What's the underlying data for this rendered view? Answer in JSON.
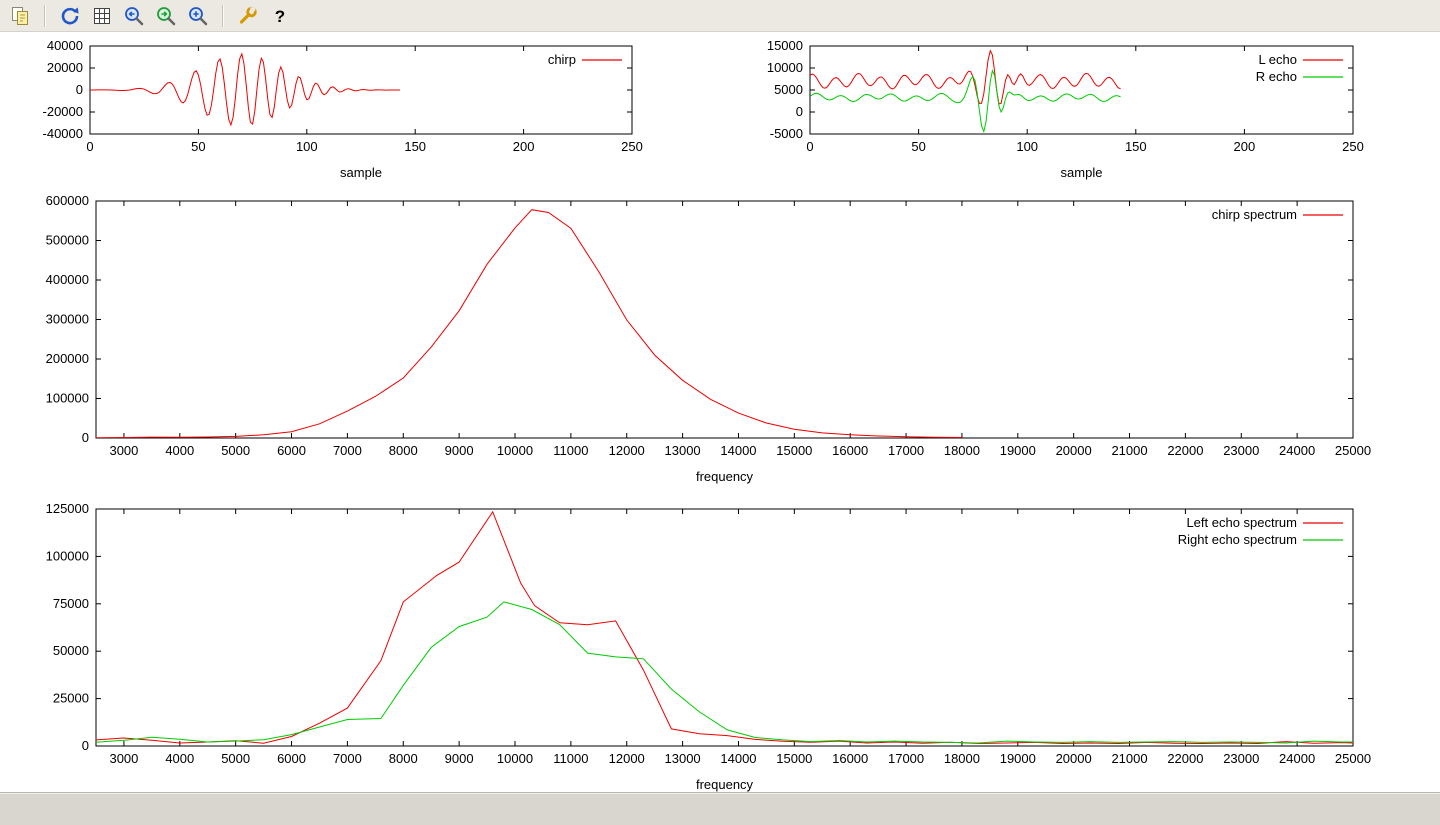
{
  "colors": {
    "toolbar_bg": "#ece8e2",
    "statusbar_bg": "#d9d5cf",
    "plot_bg": "#ffffff",
    "axis": "#000000",
    "series_red": "#ee0000",
    "series_green": "#00cc00"
  },
  "toolbar": {
    "icons": [
      "copy-icon",
      "separator",
      "refresh-icon",
      "grid-icon",
      "zoom-previous-icon",
      "zoom-next-icon",
      "autoscale-icon",
      "separator",
      "config-icon",
      "help-icon"
    ]
  },
  "statusbar": {
    "text": ""
  },
  "chart_data": [
    {
      "id": "chirp-signal",
      "type": "line",
      "title": "",
      "xlabel": "sample",
      "ylabel": "",
      "xlim": [
        0,
        250
      ],
      "ylim": [
        -40000,
        40000
      ],
      "xticks": [
        0,
        50,
        100,
        150,
        200,
        250
      ],
      "yticks": [
        -40000,
        -20000,
        0,
        20000,
        40000
      ],
      "grid": false,
      "legend_position": "top-right-inside",
      "series": [
        {
          "name": "chirp",
          "color": "#ee0000",
          "note": "oscillatory chirp burst, 144 samples; envelope peaks near ±33000 around sample 70, near zero before sample 25 and after sample 115, trace ends at sample 143",
          "synthesis": {
            "kind": "chirp",
            "n": 144,
            "amplitude": 33000,
            "center": 70,
            "width": 19,
            "f0": 0.048,
            "f1": 0.16
          }
        }
      ]
    },
    {
      "id": "echo-signals",
      "type": "line",
      "title": "",
      "xlabel": "sample",
      "ylabel": "",
      "xlim": [
        0,
        250
      ],
      "ylim": [
        -5000,
        15000
      ],
      "xticks": [
        0,
        50,
        100,
        150,
        200,
        250
      ],
      "yticks": [
        -5000,
        0,
        5000,
        10000,
        15000
      ],
      "grid": false,
      "legend_position": "top-right-inside",
      "series": [
        {
          "name": "L echo",
          "color": "#ee0000",
          "note": "wiggly line around baseline 7000 with large burst near samples 70-90 peaking about 14000, ends at sample 143",
          "synthesis": {
            "kind": "echo",
            "n": 144,
            "baseline": 7000,
            "w1": {
              "amp": 1300,
              "period": 10.5,
              "phase": 0.8
            },
            "w2": {
              "amp": 500,
              "period": 26,
              "phase": 2.2
            },
            "burst": {
              "amp": 6800,
              "center": 83,
              "width": 6.5,
              "f0": 0.105,
              "k": 0.004,
              "phase": 1.5708
            }
          }
        },
        {
          "name": "R echo",
          "color": "#00cc00",
          "note": "wiggly line around baseline 3300 with burst near samples 70-90 swinging up to about 9500 and down to about -4500, ends at sample 143",
          "synthesis": {
            "kind": "echo",
            "n": 144,
            "baseline": 3300,
            "w1": {
              "amp": 650,
              "period": 11.5,
              "phase": 0.0
            },
            "w2": {
              "amp": 300,
              "period": 30,
              "phase": 1.0
            },
            "burst": {
              "amp": 7300,
              "center": 80,
              "width": 6,
              "f0": 0.105,
              "k": 0.004,
              "phase": -1.5708
            }
          }
        }
      ]
    },
    {
      "id": "chirp-spectrum",
      "type": "line",
      "title": "",
      "xlabel": "frequency",
      "ylabel": "",
      "xlim": [
        2500,
        25000
      ],
      "ylim": [
        0,
        600000
      ],
      "xticks": [
        3000,
        4000,
        5000,
        6000,
        7000,
        8000,
        9000,
        10000,
        11000,
        12000,
        13000,
        14000,
        15000,
        16000,
        17000,
        18000,
        19000,
        20000,
        21000,
        22000,
        23000,
        24000,
        25000
      ],
      "yticks": [
        0,
        100000,
        200000,
        300000,
        400000,
        500000,
        600000
      ],
      "grid": false,
      "legend_position": "top-right-inside",
      "series": [
        {
          "name": "chirp spectrum",
          "color": "#ee0000",
          "points": [
            [
              2500,
              800
            ],
            [
              3000,
              1300
            ],
            [
              3500,
              2300
            ],
            [
              4000,
              1700
            ],
            [
              4500,
              2500
            ],
            [
              5000,
              4000
            ],
            [
              5500,
              8000
            ],
            [
              6000,
              16000
            ],
            [
              6500,
              36000
            ],
            [
              7000,
              68000
            ],
            [
              7500,
              105000
            ],
            [
              8000,
              152000
            ],
            [
              8500,
              230000
            ],
            [
              9000,
              322000
            ],
            [
              9500,
              440000
            ],
            [
              10000,
              532000
            ],
            [
              10300,
              578000
            ],
            [
              10600,
              571000
            ],
            [
              11000,
              531000
            ],
            [
              11500,
              421000
            ],
            [
              12000,
              299000
            ],
            [
              12500,
              210000
            ],
            [
              13000,
              146000
            ],
            [
              13500,
              98000
            ],
            [
              14000,
              63000
            ],
            [
              14500,
              38000
            ],
            [
              15000,
              22000
            ],
            [
              15500,
              13000
            ],
            [
              16000,
              8000
            ],
            [
              16500,
              5000
            ],
            [
              17000,
              3400
            ],
            [
              17500,
              2100
            ],
            [
              18000,
              1300
            ]
          ]
        }
      ]
    },
    {
      "id": "echo-spectra",
      "type": "line",
      "title": "",
      "xlabel": "frequency",
      "ylabel": "",
      "xlim": [
        2500,
        25000
      ],
      "ylim": [
        0,
        125000
      ],
      "xticks": [
        3000,
        4000,
        5000,
        6000,
        7000,
        8000,
        9000,
        10000,
        11000,
        12000,
        13000,
        14000,
        15000,
        16000,
        17000,
        18000,
        19000,
        20000,
        21000,
        22000,
        23000,
        24000,
        25000
      ],
      "yticks": [
        0,
        25000,
        50000,
        75000,
        100000,
        125000
      ],
      "grid": false,
      "legend_position": "top-right-inside",
      "series": [
        {
          "name": "Left echo spectrum",
          "color": "#ee0000",
          "points": [
            [
              2500,
              3200
            ],
            [
              3000,
              4200
            ],
            [
              3500,
              3000
            ],
            [
              4000,
              1600
            ],
            [
              4500,
              2100
            ],
            [
              5000,
              2800
            ],
            [
              5500,
              1500
            ],
            [
              6000,
              5000
            ],
            [
              6500,
              12000
            ],
            [
              7000,
              20000
            ],
            [
              7600,
              45000
            ],
            [
              8000,
              76000
            ],
            [
              8600,
              90000
            ],
            [
              9000,
              97000
            ],
            [
              9600,
              123500
            ],
            [
              10100,
              86000
            ],
            [
              10350,
              74000
            ],
            [
              10800,
              65000
            ],
            [
              11300,
              64000
            ],
            [
              11800,
              66000
            ],
            [
              12300,
              40000
            ],
            [
              12800,
              9000
            ],
            [
              13300,
              6500
            ],
            [
              13800,
              5500
            ],
            [
              14300,
              3500
            ],
            [
              14800,
              2500
            ],
            [
              15300,
              2000
            ],
            [
              15800,
              2600
            ],
            [
              16300,
              1600
            ],
            [
              16800,
              2100
            ],
            [
              17300,
              1500
            ],
            [
              17800,
              2000
            ],
            [
              18300,
              1300
            ],
            [
              18800,
              1600
            ],
            [
              19300,
              1900
            ],
            [
              19800,
              1300
            ],
            [
              20300,
              1600
            ],
            [
              20800,
              1300
            ],
            [
              21300,
              1900
            ],
            [
              21800,
              1500
            ],
            [
              22300,
              1300
            ],
            [
              22800,
              1600
            ],
            [
              23300,
              1300
            ],
            [
              23800,
              2300
            ],
            [
              24300,
              1500
            ],
            [
              24800,
              1800
            ],
            [
              25000,
              1600
            ]
          ]
        },
        {
          "name": "Right echo spectrum",
          "color": "#00cc00",
          "points": [
            [
              2500,
              2000
            ],
            [
              3000,
              3000
            ],
            [
              3500,
              4600
            ],
            [
              4000,
              3600
            ],
            [
              4500,
              2100
            ],
            [
              5000,
              2600
            ],
            [
              5500,
              3300
            ],
            [
              6000,
              6000
            ],
            [
              6500,
              10000
            ],
            [
              7000,
              14000
            ],
            [
              7600,
              14500
            ],
            [
              8000,
              32000
            ],
            [
              8500,
              52000
            ],
            [
              9000,
              63000
            ],
            [
              9500,
              68000
            ],
            [
              9800,
              76000
            ],
            [
              10300,
              72000
            ],
            [
              10800,
              64000
            ],
            [
              11300,
              49000
            ],
            [
              11800,
              47000
            ],
            [
              12300,
              46000
            ],
            [
              12800,
              30000
            ],
            [
              13300,
              18000
            ],
            [
              13800,
              8500
            ],
            [
              14300,
              4500
            ],
            [
              14800,
              3200
            ],
            [
              15300,
              2300
            ],
            [
              15800,
              2900
            ],
            [
              16300,
              2100
            ],
            [
              16800,
              2600
            ],
            [
              17300,
              2100
            ],
            [
              17800,
              1900
            ],
            [
              18300,
              1600
            ],
            [
              18800,
              2600
            ],
            [
              19300,
              2100
            ],
            [
              19800,
              1900
            ],
            [
              20300,
              2300
            ],
            [
              20800,
              1900
            ],
            [
              21300,
              2100
            ],
            [
              21800,
              2300
            ],
            [
              22300,
              1900
            ],
            [
              22800,
              2100
            ],
            [
              23300,
              1900
            ],
            [
              23800,
              1600
            ],
            [
              24300,
              2600
            ],
            [
              24800,
              2100
            ],
            [
              25000,
              2100
            ]
          ]
        }
      ]
    }
  ]
}
